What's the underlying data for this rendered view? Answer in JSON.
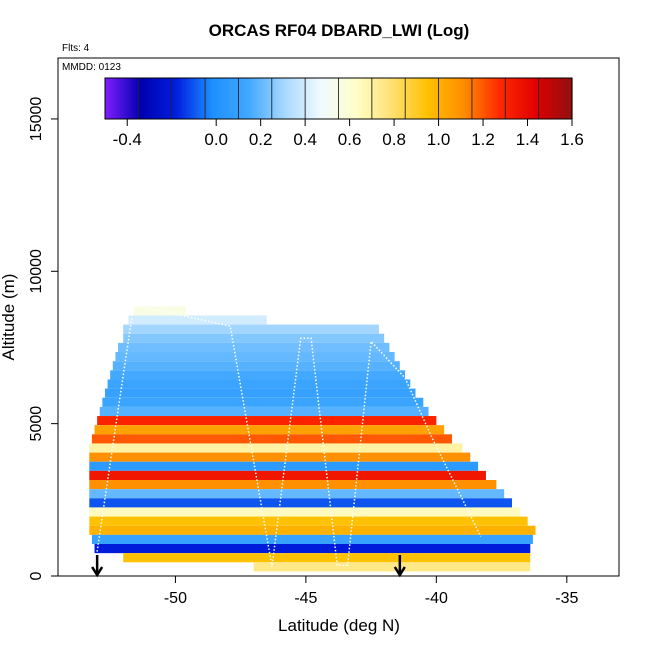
{
  "chart_data": {
    "type": "heatmap",
    "title": "ORCAS RF04 DBARD_LWI (Log)",
    "flights_label": "Flts: 4",
    "date_label": "MMDD: 0123",
    "xlabel": "Latitude (deg N)",
    "ylabel": "Altitude (m)",
    "xlim": [
      -54.5,
      -33.0
    ],
    "ylim": [
      0,
      17000
    ],
    "x_ticks": [
      -50,
      -45,
      -40,
      -35
    ],
    "x_tick_labels": [
      "-50",
      "-45",
      "-40",
      "-35"
    ],
    "y_ticks": [
      0,
      5000,
      10000,
      15000
    ],
    "y_tick_labels": [
      "0",
      "5000",
      "10000",
      "15000"
    ],
    "colorbar": {
      "min": -0.5,
      "max": 1.6,
      "ticks": [
        -0.4,
        0.0,
        0.2,
        0.4,
        0.6,
        0.8,
        1.0,
        1.2,
        1.4,
        1.6
      ],
      "tick_labels": [
        "-0.4",
        "0.0",
        "0.2",
        "0.4",
        "0.6",
        "0.8",
        "1.0",
        "1.2",
        "1.4",
        "1.6"
      ],
      "colors": [
        "#7f1fff",
        "#0000b0",
        "#0020e0",
        "#1e90ff",
        "#40a8ff",
        "#a8d8ff",
        "#f0faff",
        "#ffffc8",
        "#ffe070",
        "#ffc000",
        "#ff8c00",
        "#ff2800",
        "#e00000",
        "#901010"
      ]
    },
    "bands": [
      {
        "alt": 8700,
        "lat_start": -51.6,
        "lat_end": -49.6,
        "value": 0.55
      },
      {
        "alt": 8400,
        "lat_start": -51.8,
        "lat_end": -46.5,
        "value": 0.4
      },
      {
        "alt": 8100,
        "lat_start": -52.0,
        "lat_end": -42.2,
        "value": 0.3
      },
      {
        "alt": 7800,
        "lat_start": -52.0,
        "lat_end": -42.0,
        "value": 0.25
      },
      {
        "alt": 7500,
        "lat_start": -52.2,
        "lat_end": -41.8,
        "value": 0.22
      },
      {
        "alt": 7200,
        "lat_start": -52.3,
        "lat_end": -41.6,
        "value": 0.2
      },
      {
        "alt": 6900,
        "lat_start": -52.4,
        "lat_end": -41.4,
        "value": 0.18
      },
      {
        "alt": 6600,
        "lat_start": -52.5,
        "lat_end": -41.2,
        "value": 0.15
      },
      {
        "alt": 6300,
        "lat_start": -52.6,
        "lat_end": -41.0,
        "value": 0.12
      },
      {
        "alt": 6000,
        "lat_start": -52.7,
        "lat_end": -40.8,
        "value": 0.1
      },
      {
        "alt": 5700,
        "lat_start": -52.8,
        "lat_end": -40.5,
        "value": 0.12
      },
      {
        "alt": 5400,
        "lat_start": -52.9,
        "lat_end": -40.3,
        "value": 0.18
      },
      {
        "alt": 5100,
        "lat_start": -53.0,
        "lat_end": -40.0,
        "value": 1.3
      },
      {
        "alt": 4800,
        "lat_start": -53.1,
        "lat_end": -39.7,
        "value": 1.05
      },
      {
        "alt": 4500,
        "lat_start": -53.2,
        "lat_end": -39.4,
        "value": 1.2
      },
      {
        "alt": 4200,
        "lat_start": -53.3,
        "lat_end": -39.0,
        "value": 0.7
      },
      {
        "alt": 3900,
        "lat_start": -53.3,
        "lat_end": -38.7,
        "value": 1.1
      },
      {
        "alt": 3600,
        "lat_start": -53.3,
        "lat_end": -38.4,
        "value": 0.05
      },
      {
        "alt": 3300,
        "lat_start": -53.3,
        "lat_end": -38.1,
        "value": 1.35
      },
      {
        "alt": 3000,
        "lat_start": -53.3,
        "lat_end": -37.7,
        "value": 1.1
      },
      {
        "alt": 2700,
        "lat_start": -53.3,
        "lat_end": -37.4,
        "value": 0.2
      },
      {
        "alt": 2400,
        "lat_start": -53.3,
        "lat_end": -37.1,
        "value": -0.1
      },
      {
        "alt": 2100,
        "lat_start": -53.3,
        "lat_end": -36.8,
        "value": 0.65
      },
      {
        "alt": 1800,
        "lat_start": -53.3,
        "lat_end": -36.5,
        "value": 0.95
      },
      {
        "alt": 1500,
        "lat_start": -53.3,
        "lat_end": -36.2,
        "value": 1.0
      },
      {
        "alt": 1200,
        "lat_start": -53.2,
        "lat_end": -36.3,
        "value": 0.1
      },
      {
        "alt": 900,
        "lat_start": -53.1,
        "lat_end": -36.4,
        "value": -0.2
      },
      {
        "alt": 600,
        "lat_start": -52.0,
        "lat_end": -36.4,
        "value": 0.95
      },
      {
        "alt": 300,
        "lat_start": -47.0,
        "lat_end": -36.4,
        "value": 0.75
      }
    ],
    "flight_track": [
      [
        -53.0,
        800
      ],
      [
        -51.6,
        8900
      ],
      [
        -47.9,
        8200
      ],
      [
        -46.3,
        300
      ],
      [
        -45.2,
        7800
      ],
      [
        -44.8,
        7800
      ],
      [
        -43.8,
        350
      ],
      [
        -43.4,
        350
      ],
      [
        -42.5,
        7700
      ],
      [
        -41.2,
        6500
      ],
      [
        -40.2,
        4600
      ],
      [
        -38.3,
        1300
      ]
    ],
    "arrows": [
      {
        "lat": -53.0,
        "label": ""
      },
      {
        "lat": -41.4,
        "label": ""
      }
    ]
  }
}
